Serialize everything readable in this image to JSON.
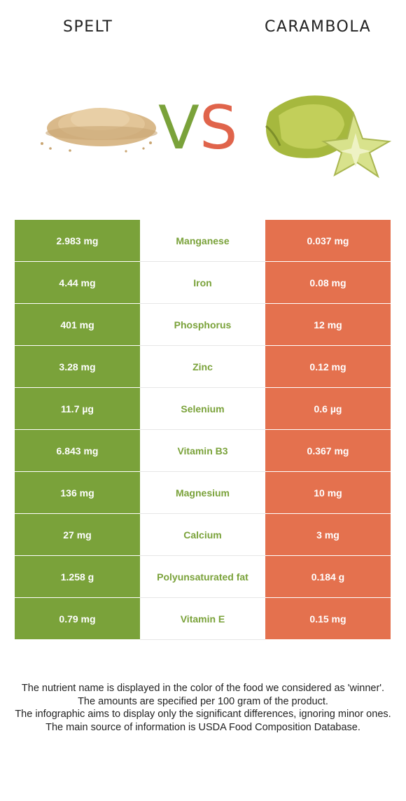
{
  "foods": {
    "left": "SPELT",
    "right": "CARAMBOLA"
  },
  "vs": {
    "v": "V",
    "s": "S"
  },
  "colors": {
    "left_accent": "#7aa23a",
    "right_accent": "#e4714e"
  },
  "rows": [
    {
      "left": "2.983 mg",
      "nutrient": "Manganese",
      "right": "0.037 mg"
    },
    {
      "left": "4.44 mg",
      "nutrient": "Iron",
      "right": "0.08 mg"
    },
    {
      "left": "401 mg",
      "nutrient": "Phosphorus",
      "right": "12 mg"
    },
    {
      "left": "3.28 mg",
      "nutrient": "Zinc",
      "right": "0.12 mg"
    },
    {
      "left": "11.7 µg",
      "nutrient": "Selenium",
      "right": "0.6 µg"
    },
    {
      "left": "6.843 mg",
      "nutrient": "Vitamin B3",
      "right": "0.367 mg"
    },
    {
      "left": "136 mg",
      "nutrient": "Magnesium",
      "right": "10 mg"
    },
    {
      "left": "27 mg",
      "nutrient": "Calcium",
      "right": "3 mg"
    },
    {
      "left": "1.258 g",
      "nutrient": "Polyunsaturated fat",
      "right": "0.184 g"
    },
    {
      "left": "0.79 mg",
      "nutrient": "Vitamin E",
      "right": "0.15 mg"
    }
  ],
  "notes": [
    "The nutrient name is displayed in the color of the food we considered as 'winner'.",
    "The amounts are specified per 100 gram of the product.",
    "The infographic aims to display only the significant differences, ignoring minor ones.",
    "The main source of information is USDA Food Composition Database."
  ]
}
